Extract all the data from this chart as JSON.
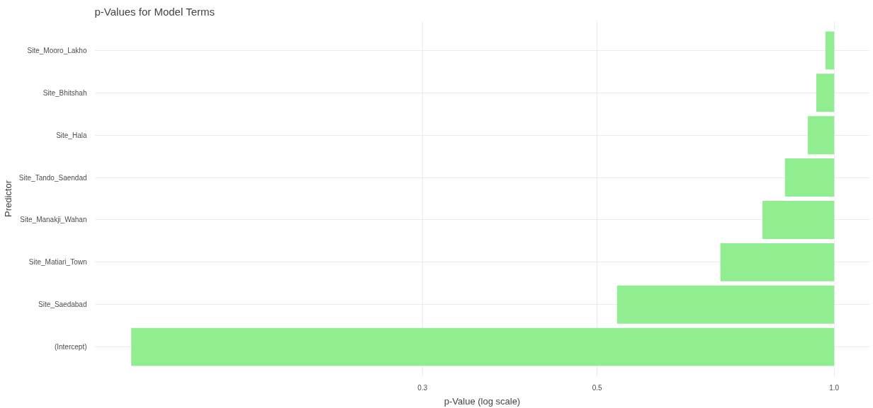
{
  "chart_data": {
    "type": "bar",
    "orientation": "horizontal",
    "title": "p-Values for Model Terms",
    "xlabel": "p-Value (log scale)",
    "ylabel": "Predictor",
    "categories": [
      "Site_Mooro_Lakho",
      "Site_Bhitshah",
      "Site_Hala",
      "Site_Tando_Saendad",
      "Site_Manakji_Wahan",
      "Site_Matiari_Town",
      "Site_Saedabad",
      "(Intercept)"
    ],
    "values": [
      -0.025,
      -0.051,
      -0.074,
      -0.134,
      -0.189,
      -0.283,
      -0.47,
      -0.872
    ],
    "base": [
      1,
      1,
      1,
      1,
      1,
      1,
      1,
      1
    ],
    "color": "#90ee90",
    "log": "x",
    "xlim": [
      0.115,
      1.11
    ],
    "xticks": [
      {
        "value": 0.3,
        "label": "0.3"
      },
      {
        "value": 0.5,
        "label": "0.5"
      },
      {
        "value": 1.0,
        "label": "1.0"
      }
    ],
    "grid": true
  }
}
